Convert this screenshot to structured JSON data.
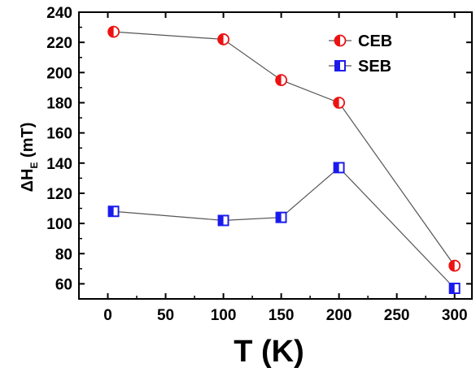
{
  "chart_data": {
    "type": "line",
    "title": "",
    "xlabel": "T (K)",
    "ylabel": {
      "main": "ΔH",
      "subscript": "E",
      "unit": "(mT)"
    },
    "xlim": [
      -25,
      315
    ],
    "ylim": [
      50,
      240
    ],
    "xticks": [
      0,
      50,
      100,
      150,
      200,
      250,
      300
    ],
    "yticks": [
      60,
      80,
      100,
      120,
      140,
      160,
      180,
      200,
      220,
      240
    ],
    "grid": false,
    "legend": {
      "position": "top-right",
      "entries": [
        "CEB",
        "SEB"
      ]
    },
    "series": [
      {
        "name": "CEB",
        "marker": "half-filled-circle",
        "color": "#ee1111",
        "x": [
          5,
          100,
          150,
          200,
          300
        ],
        "y": [
          227,
          222,
          195,
          180,
          72
        ]
      },
      {
        "name": "SEB",
        "marker": "half-filled-square",
        "color": "#1a1aee",
        "x": [
          5,
          100,
          150,
          200,
          300
        ],
        "y": [
          108,
          102,
          104,
          137,
          57
        ]
      }
    ],
    "line_color": "#555555"
  }
}
